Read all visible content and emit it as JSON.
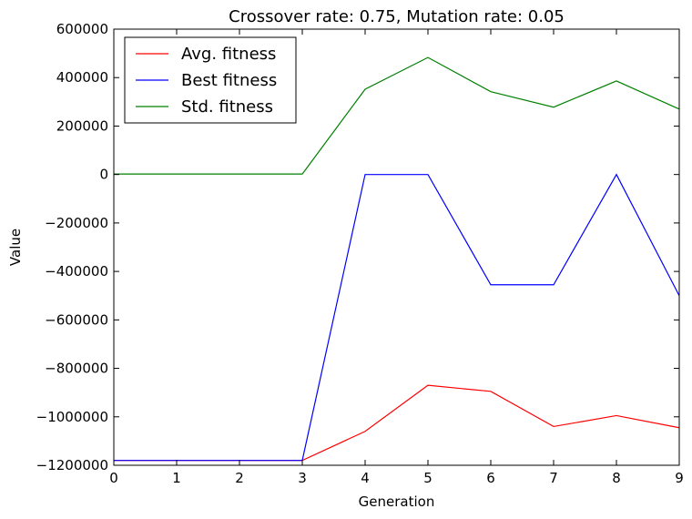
{
  "chart_data": {
    "type": "line",
    "title": "Crossover rate: 0.75, Mutation rate: 0.05",
    "xlabel": "Generation",
    "ylabel": "Value",
    "x": [
      0,
      1,
      2,
      3,
      4,
      5,
      6,
      7,
      8,
      9
    ],
    "xlim": [
      0,
      9
    ],
    "ylim": [
      -1200000,
      600000
    ],
    "xticks": [
      0,
      1,
      2,
      3,
      4,
      5,
      6,
      7,
      8,
      9
    ],
    "yticks": [
      -1200000,
      -1000000,
      -800000,
      -600000,
      -400000,
      -200000,
      0,
      200000,
      400000,
      600000
    ],
    "grid": false,
    "legend_position": "top-left",
    "series": [
      {
        "name": "Avg. fitness",
        "color": "#ff0000",
        "values": [
          -1180000,
          -1180000,
          -1180000,
          -1180000,
          -1060000,
          -870000,
          -895000,
          -1040000,
          -995000,
          -1045000
        ]
      },
      {
        "name": "Best fitness",
        "color": "#0000ff",
        "values": [
          -1180000,
          -1180000,
          -1180000,
          -1180000,
          0,
          0,
          -455000,
          -455000,
          0,
          -500000
        ]
      },
      {
        "name": "Std. fitness",
        "color": "#008000",
        "values": [
          2000,
          2000,
          2000,
          2000,
          352000,
          483000,
          342000,
          278000,
          386000,
          270000
        ]
      }
    ]
  }
}
